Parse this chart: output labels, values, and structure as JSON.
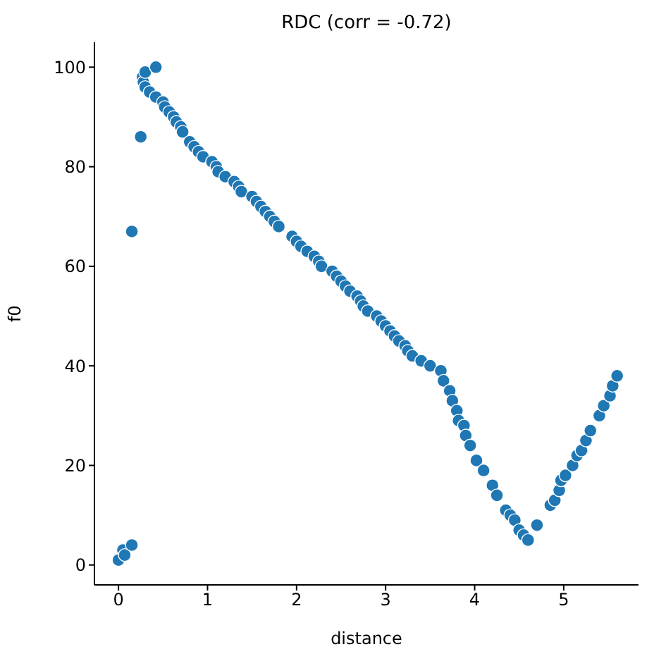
{
  "chart_data": {
    "type": "scatter",
    "title": "RDC (corr = -0.72)",
    "xlabel": "distance",
    "ylabel": "f0",
    "xlim": [
      -0.27,
      5.84
    ],
    "ylim": [
      -4,
      105
    ],
    "xticks": [
      0,
      1,
      2,
      3,
      4,
      5
    ],
    "yticks": [
      0,
      20,
      40,
      60,
      80,
      100
    ],
    "grid": false,
    "legend": false,
    "marker": "circle",
    "series": [
      {
        "color": "#1f77b4",
        "x": [
          0,
          0.05,
          0.07,
          0.15,
          0.15,
          0.25,
          0.27,
          0.28,
          0.3,
          0.3,
          0.35,
          0.42,
          0.42,
          0.5,
          0.52,
          0.57,
          0.62,
          0.65,
          0.7,
          0.72,
          0.8,
          0.85,
          0.9,
          0.95,
          1.05,
          1.1,
          1.12,
          1.2,
          1.3,
          1.35,
          1.38,
          1.5,
          1.55,
          1.6,
          1.65,
          1.7,
          1.75,
          1.8,
          1.95,
          2.0,
          2.05,
          2.12,
          2.2,
          2.25,
          2.28,
          2.4,
          2.45,
          2.5,
          2.55,
          2.6,
          2.68,
          2.72,
          2.75,
          2.8,
          2.9,
          2.95,
          3.0,
          3.05,
          3.1,
          3.15,
          3.22,
          3.25,
          3.3,
          3.4,
          3.5,
          3.62,
          3.65,
          3.72,
          3.75,
          3.8,
          3.82,
          3.88,
          3.9,
          3.95,
          4.02,
          4.1,
          4.2,
          4.25,
          4.35,
          4.4,
          4.45,
          4.5,
          4.55,
          4.6,
          4.7,
          4.85,
          4.9,
          4.95,
          4.97,
          5.02,
          5.1,
          5.15,
          5.2,
          5.25,
          5.3,
          5.4,
          5.45,
          5.52,
          5.55,
          5.6
        ],
        "values": [
          1,
          3,
          2,
          4,
          67,
          86,
          98,
          97,
          99,
          96,
          95,
          100,
          94,
          93,
          92,
          91,
          90,
          89,
          88,
          87,
          85,
          84,
          83,
          82,
          81,
          80,
          79,
          78,
          77,
          76,
          75,
          74,
          73,
          72,
          71,
          70,
          69,
          68,
          66,
          65,
          64,
          63,
          62,
          61,
          60,
          59,
          58,
          57,
          56,
          55,
          54,
          53,
          52,
          51,
          50,
          49,
          48,
          47,
          46,
          45,
          44,
          43,
          42,
          41,
          40,
          39,
          37,
          35,
          33,
          31,
          29,
          28,
          26,
          24,
          21,
          19,
          16,
          14,
          11,
          10,
          9,
          7,
          6,
          5,
          8,
          12,
          13,
          15,
          17,
          18,
          20,
          22,
          23,
          25,
          27,
          30,
          32,
          34,
          36,
          38
        ]
      }
    ]
  }
}
